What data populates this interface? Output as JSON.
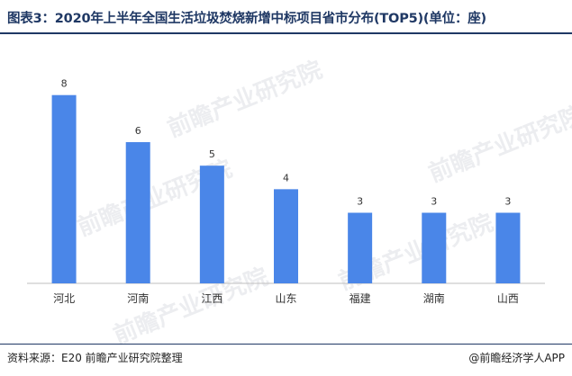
{
  "header": {
    "title": "图表3：2020年上半年全国生活垃圾焚烧新增中标项目省市分布(TOP5)(单位：座)"
  },
  "footer": {
    "source": "资料来源：E20  前瞻产业研究院整理",
    "brand": "@前瞻经济学人APP"
  },
  "watermark": {
    "text": "前瞻产业研究院"
  },
  "colors": {
    "bar": "#4a86e8",
    "axis": "#bfbfbf",
    "title": "#1f3864"
  },
  "chart_data": {
    "type": "bar",
    "title": "图表3：2020年上半年全国生活垃圾焚烧新增中标项目省市分布(TOP5)(单位：座)",
    "xlabel": "",
    "ylabel": "",
    "categories": [
      "河北",
      "河南",
      "江西",
      "山东",
      "福建",
      "湖南",
      "山西"
    ],
    "values": [
      8,
      6,
      5,
      4,
      3,
      3,
      3
    ],
    "ylim": [
      0,
      8.6
    ],
    "grid": false,
    "legend": "none",
    "data_labels": true
  }
}
